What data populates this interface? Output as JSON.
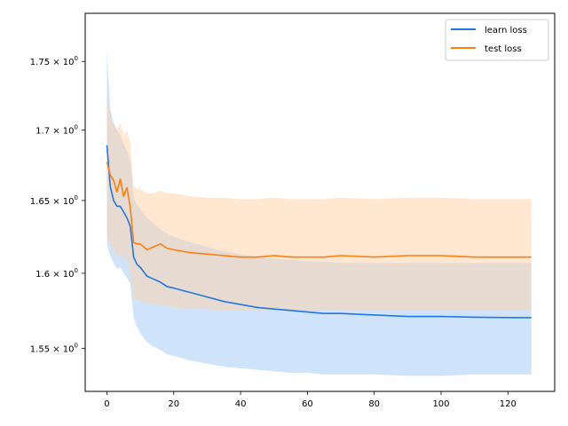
{
  "chart_data": {
    "type": "line",
    "title": "",
    "xlabel": "",
    "ylabel": "",
    "y_scale": "log",
    "xlim": [
      -6.5,
      134
    ],
    "ylim": [
      1.522,
      1.786
    ],
    "grid": false,
    "legend_position": "top-right",
    "x_ticks": [
      0,
      20,
      40,
      60,
      80,
      100,
      120
    ],
    "x_tick_labels": [
      "0",
      "20",
      "40",
      "60",
      "80",
      "100",
      "120"
    ],
    "y_ticks": [
      1.55,
      1.6,
      1.65,
      1.7,
      1.75
    ],
    "y_tick_labels": [
      {
        "mantissa": "1.55",
        "times": "×",
        "base": "10",
        "exp": "0"
      },
      {
        "mantissa": "1.6",
        "times": "×",
        "base": "10",
        "exp": "0"
      },
      {
        "mantissa": "1.65",
        "times": "×",
        "base": "10",
        "exp": "0"
      },
      {
        "mantissa": "1.7",
        "times": "×",
        "base": "10",
        "exp": "0"
      },
      {
        "mantissa": "1.75",
        "times": "×",
        "base": "10",
        "exp": "0"
      }
    ],
    "series": [
      {
        "name": "learn loss",
        "color": "#1f77e4",
        "band_color": "#9fcaf8",
        "x": [
          0,
          1,
          2,
          3,
          4,
          5,
          6,
          7,
          8,
          9,
          10,
          12,
          14,
          16,
          18,
          20,
          25,
          30,
          35,
          40,
          45,
          50,
          55,
          60,
          65,
          70,
          80,
          90,
          100,
          110,
          120,
          127
        ],
        "mean": [
          1.689,
          1.66,
          1.65,
          1.646,
          1.646,
          1.642,
          1.638,
          1.632,
          1.611,
          1.606,
          1.604,
          1.598,
          1.596,
          1.594,
          1.591,
          1.59,
          1.587,
          1.584,
          1.581,
          1.579,
          1.577,
          1.576,
          1.575,
          1.574,
          1.573,
          1.573,
          1.572,
          1.571,
          1.571,
          1.5705,
          1.5703,
          1.5702
        ],
        "lower": [
          1.62,
          1.612,
          1.607,
          1.603,
          1.604,
          1.6,
          1.597,
          1.593,
          1.57,
          1.564,
          1.56,
          1.554,
          1.551,
          1.549,
          1.546,
          1.545,
          1.542,
          1.54,
          1.538,
          1.537,
          1.536,
          1.535,
          1.534,
          1.534,
          1.533,
          1.533,
          1.533,
          1.532,
          1.532,
          1.533,
          1.533,
          1.533
        ],
        "upper": [
          1.757,
          1.715,
          1.705,
          1.7,
          1.696,
          1.69,
          1.685,
          1.678,
          1.652,
          1.647,
          1.644,
          1.638,
          1.634,
          1.63,
          1.627,
          1.625,
          1.621,
          1.618,
          1.615,
          1.613,
          1.611,
          1.61,
          1.609,
          1.608,
          1.608,
          1.607,
          1.607,
          1.607,
          1.607,
          1.607,
          1.607,
          1.607
        ]
      },
      {
        "name": "test loss",
        "color": "#ff7f0e",
        "band_color": "#ffcfa6",
        "x": [
          0,
          1,
          2,
          3,
          4,
          5,
          6,
          7,
          8,
          9,
          10,
          12,
          14,
          16,
          18,
          20,
          25,
          30,
          35,
          40,
          45,
          50,
          55,
          60,
          65,
          70,
          80,
          90,
          100,
          110,
          120,
          127
        ],
        "mean": [
          1.677,
          1.668,
          1.664,
          1.656,
          1.665,
          1.653,
          1.659,
          1.645,
          1.621,
          1.62,
          1.62,
          1.616,
          1.618,
          1.62,
          1.617,
          1.616,
          1.614,
          1.613,
          1.612,
          1.611,
          1.611,
          1.612,
          1.611,
          1.611,
          1.611,
          1.612,
          1.611,
          1.612,
          1.612,
          1.611,
          1.611,
          1.611
        ],
        "lower": [
          1.625,
          1.62,
          1.616,
          1.61,
          1.614,
          1.608,
          1.612,
          1.6,
          1.583,
          1.582,
          1.581,
          1.58,
          1.579,
          1.579,
          1.578,
          1.577,
          1.576,
          1.576,
          1.575,
          1.575,
          1.575,
          1.575,
          1.575,
          1.575,
          1.575,
          1.575,
          1.575,
          1.575,
          1.575,
          1.575,
          1.575,
          1.575
        ],
        "upper": [
          1.727,
          1.71,
          1.705,
          1.7,
          1.705,
          1.695,
          1.7,
          1.69,
          1.66,
          1.658,
          1.658,
          1.655,
          1.655,
          1.657,
          1.655,
          1.655,
          1.653,
          1.652,
          1.652,
          1.651,
          1.651,
          1.652,
          1.651,
          1.651,
          1.651,
          1.652,
          1.651,
          1.652,
          1.652,
          1.651,
          1.651,
          1.651
        ]
      }
    ]
  }
}
